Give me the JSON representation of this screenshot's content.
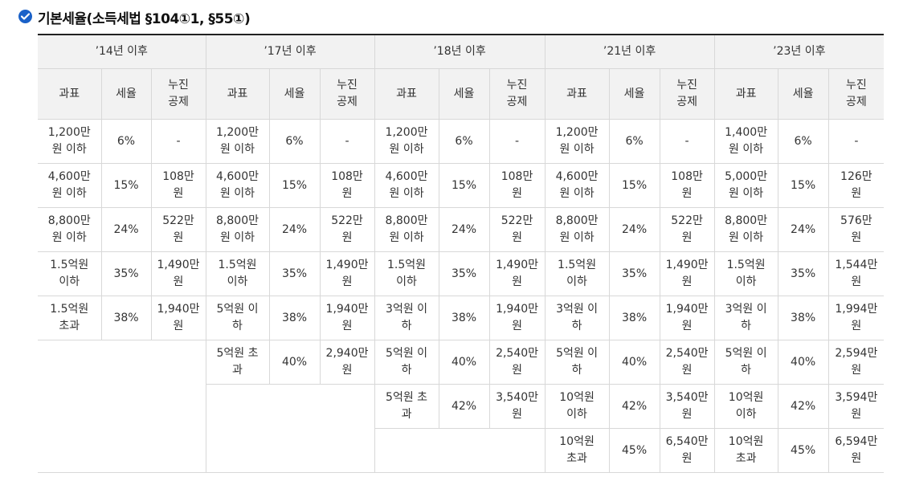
{
  "title": "기본세율(소득세법 §104①1, §55①)",
  "colors": {
    "check": "#1a61c8",
    "header_bg": "#f2f2f2",
    "border": "#d8d8d8"
  },
  "periods": [
    "’14년 이후",
    "’17년 이후",
    "’18년 이후",
    "’21년 이후",
    "’23년 이후"
  ],
  "subheaders": {
    "base": "과표",
    "rate": "세율",
    "deduct": [
      "누진",
      "공제"
    ]
  },
  "rows": [
    [
      [
        "1,200만",
        "원 이하"
      ],
      "6%",
      "-",
      [
        "1,200만",
        "원 이하"
      ],
      "6%",
      "-",
      [
        "1,200만",
        "원 이하"
      ],
      "6%",
      "-",
      [
        "1,200만",
        "원 이하"
      ],
      "6%",
      "-",
      [
        "1,400만",
        "원 이하"
      ],
      "6%",
      "-"
    ],
    [
      [
        "4,600만",
        "원 이하"
      ],
      "15%",
      [
        "108만",
        "원"
      ],
      [
        "4,600만",
        "원 이하"
      ],
      "15%",
      [
        "108만",
        "원"
      ],
      [
        "4,600만",
        "원 이하"
      ],
      "15%",
      [
        "108만",
        "원"
      ],
      [
        "4,600만",
        "원 이하"
      ],
      "15%",
      [
        "108만",
        "원"
      ],
      [
        "5,000만",
        "원 이하"
      ],
      "15%",
      [
        "126만",
        "원"
      ]
    ],
    [
      [
        "8,800만",
        "원 이하"
      ],
      "24%",
      [
        "522만",
        "원"
      ],
      [
        "8,800만",
        "원 이하"
      ],
      "24%",
      [
        "522만",
        "원"
      ],
      [
        "8,800만",
        "원 이하"
      ],
      "24%",
      [
        "522만",
        "원"
      ],
      [
        "8,800만",
        "원 이하"
      ],
      "24%",
      [
        "522만",
        "원"
      ],
      [
        "8,800만",
        "원 이하"
      ],
      "24%",
      [
        "576만",
        "원"
      ]
    ],
    [
      [
        "1.5억원",
        "이하"
      ],
      "35%",
      [
        "1,490만",
        "원"
      ],
      [
        "1.5억원",
        "이하"
      ],
      "35%",
      [
        "1,490만",
        "원"
      ],
      [
        "1.5억원",
        "이하"
      ],
      "35%",
      [
        "1,490만",
        "원"
      ],
      [
        "1.5억원",
        "이하"
      ],
      "35%",
      [
        "1,490만",
        "원"
      ],
      [
        "1.5억원",
        "이하"
      ],
      "35%",
      [
        "1,544만",
        "원"
      ]
    ],
    [
      [
        "1.5억원",
        "초과"
      ],
      "38%",
      [
        "1,940만",
        "원"
      ],
      [
        "5억원 이",
        "하"
      ],
      "38%",
      [
        "1,940만",
        "원"
      ],
      [
        "3억원 이",
        "하"
      ],
      "38%",
      [
        "1,940만",
        "원"
      ],
      [
        "3억원 이",
        "하"
      ],
      "38%",
      [
        "1,940만",
        "원"
      ],
      [
        "3억원 이",
        "하"
      ],
      "38%",
      [
        "1,994만",
        "원"
      ]
    ],
    [
      null,
      null,
      null,
      [
        "5억원 초",
        "과"
      ],
      "40%",
      [
        "2,940만",
        "원"
      ],
      [
        "5억원 이",
        "하"
      ],
      "40%",
      [
        "2,540만",
        "원"
      ],
      [
        "5억원 이",
        "하"
      ],
      "40%",
      [
        "2,540만",
        "원"
      ],
      [
        "5억원 이",
        "하"
      ],
      "40%",
      [
        "2,594만",
        "원"
      ]
    ],
    [
      null,
      null,
      null,
      null,
      null,
      null,
      [
        "5억원 초",
        "과"
      ],
      "42%",
      [
        "3,540만",
        "원"
      ],
      [
        "10억원",
        "이하"
      ],
      "42%",
      [
        "3,540만",
        "원"
      ],
      [
        "10억원",
        "이하"
      ],
      "42%",
      [
        "3,594만",
        "원"
      ]
    ],
    [
      null,
      null,
      null,
      null,
      null,
      null,
      null,
      null,
      null,
      [
        "10억원",
        "초과"
      ],
      "45%",
      [
        "6,540만",
        "원"
      ],
      [
        "10억원",
        "초과"
      ],
      "45%",
      [
        "6,594만",
        "원"
      ]
    ]
  ]
}
